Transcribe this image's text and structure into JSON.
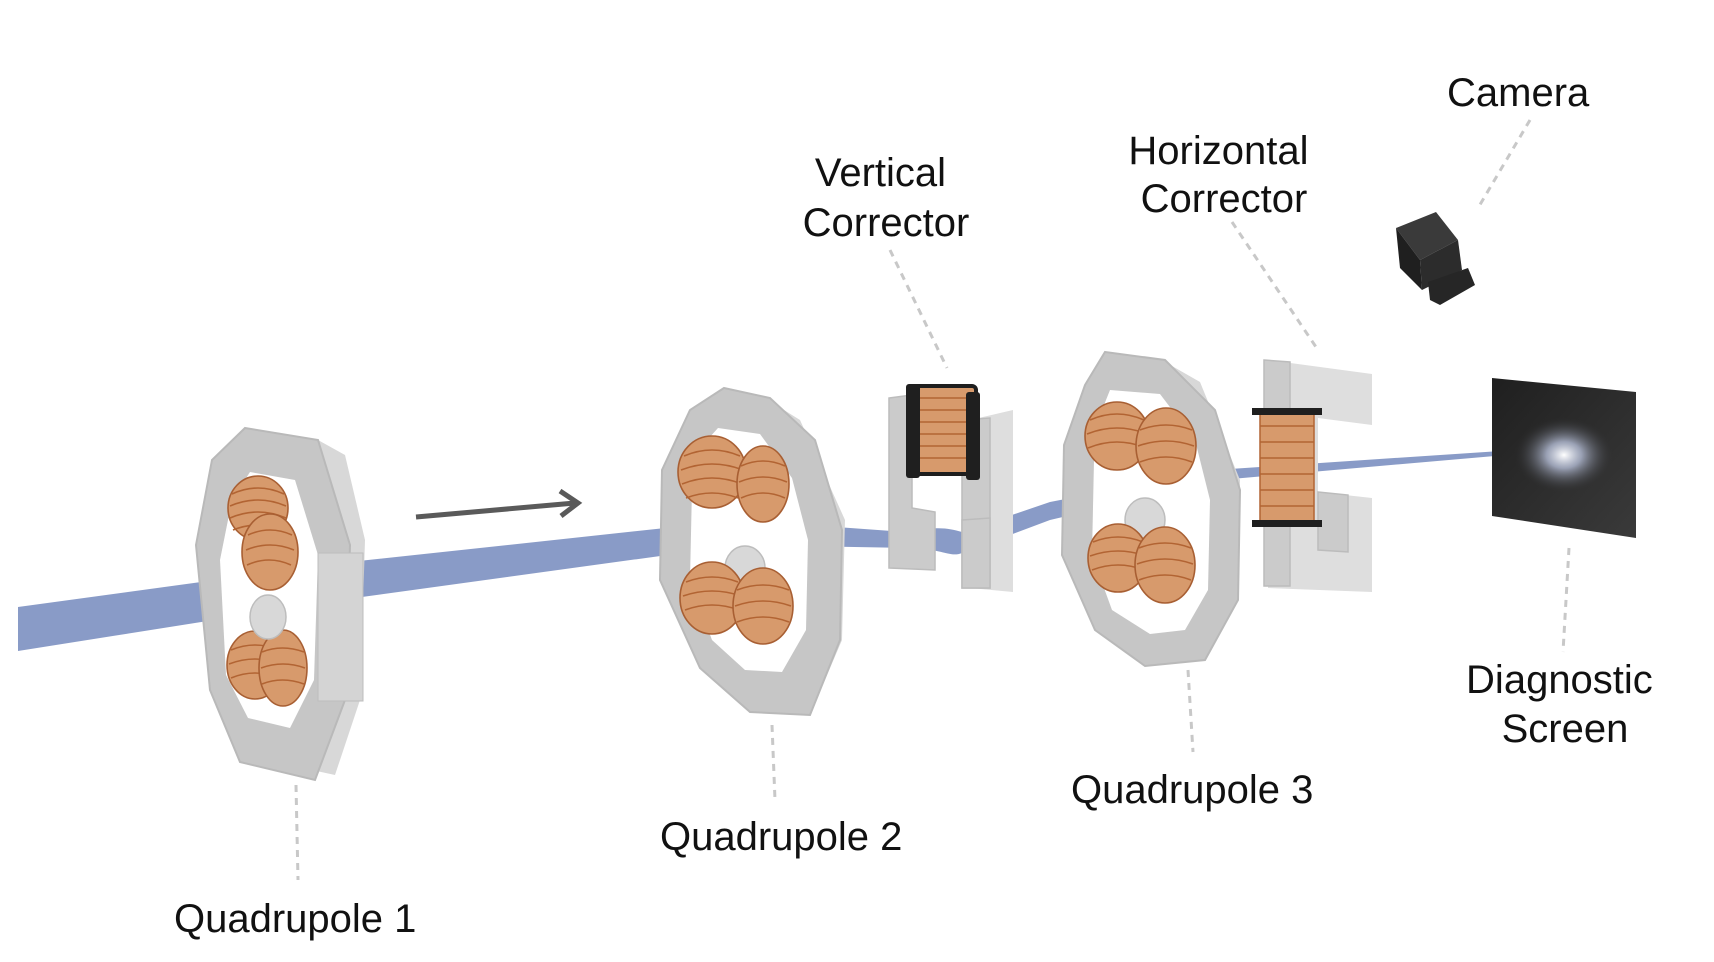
{
  "labels": {
    "quadrupole_1": "Quadrupole 1",
    "quadrupole_2": "Quadrupole 2",
    "quadrupole_3": "Quadrupole 3",
    "vertical_corrector": [
      "Vertical",
      "Corrector"
    ],
    "horizontal_corrector": [
      "Horizontal",
      "Corrector"
    ],
    "camera": "Camera",
    "diagnostic_screen": [
      "Diagnostic",
      "Screen"
    ]
  },
  "colors": {
    "beam": "#7f93c2",
    "coil": "#d79a6c",
    "frame": "#c6c6c6",
    "screen": "#2b2b2b",
    "leader": "#c8c8c8"
  },
  "icons": {
    "beam_direction": "arrow-right-icon",
    "camera": "camera-icon"
  }
}
